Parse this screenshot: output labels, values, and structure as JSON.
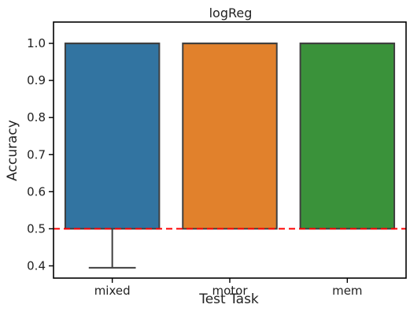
{
  "chart_data": {
    "type": "box",
    "title": "logReg",
    "xlabel": "Test Task",
    "ylabel": "Accuracy",
    "ylim": [
      0.367,
      1.0575
    ],
    "yticks": [
      0.4,
      0.5,
      0.6,
      0.7,
      0.8,
      0.9,
      1.0
    ],
    "ytick_labels": [
      "0.4",
      "0.5",
      "0.6",
      "0.7",
      "0.8",
      "0.9",
      "1.0"
    ],
    "categories": [
      "mixed",
      "motor",
      "mem"
    ],
    "boxes": [
      {
        "category": "mixed",
        "color": "#3274a1",
        "q1": 0.5,
        "median": 1.0,
        "q3": 1.0,
        "whisker_low": 0.395,
        "whisker_high": 1.0
      },
      {
        "category": "motor",
        "color": "#e1812c",
        "q1": 0.5,
        "median": 1.0,
        "q3": 1.0,
        "whisker_low": 0.5,
        "whisker_high": 1.0
      },
      {
        "category": "mem",
        "color": "#3a923a",
        "q1": 0.5,
        "median": 1.0,
        "q3": 1.0,
        "whisker_low": 0.5,
        "whisker_high": 1.0
      }
    ],
    "reference_line": {
      "y": 0.5,
      "color": "#ff0000",
      "style": "dashed"
    },
    "grid": false,
    "legend": "none"
  }
}
